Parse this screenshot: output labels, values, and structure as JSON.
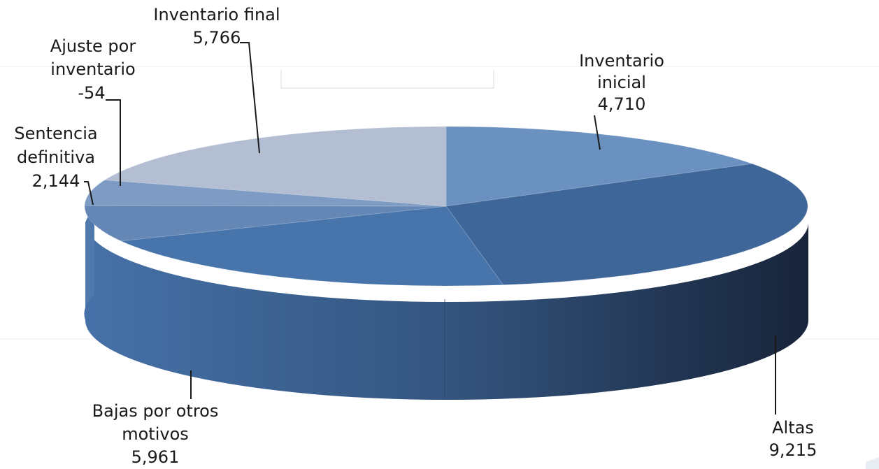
{
  "chart_data": {
    "type": "pie",
    "style": "3d",
    "title": "",
    "slices": [
      {
        "label_lines": [
          "Inventario",
          "inicial"
        ],
        "value_text": "4,710",
        "value": 4710,
        "color": "#6a91c0"
      },
      {
        "label_lines": [
          "Altas"
        ],
        "value_text": "9,215",
        "value": 9215,
        "color": "#3e6698"
      },
      {
        "label_lines": [
          "Bajas por otros",
          "motivos"
        ],
        "value_text": "5,961",
        "value": 5961,
        "color": "#4674ab"
      },
      {
        "label_lines": [
          "Sentencia",
          "definitiva"
        ],
        "value_text": "2,144",
        "value": 2144,
        "color": "#6587b6"
      },
      {
        "label_lines": [
          "Ajuste por",
          "inventario"
        ],
        "value_text": "-54",
        "value": -54,
        "color": "#7d9bc3"
      },
      {
        "label_lines": [
          "Inventario final"
        ],
        "value_text": "5,766",
        "value": 5766,
        "color": "#b3bed3"
      }
    ]
  }
}
